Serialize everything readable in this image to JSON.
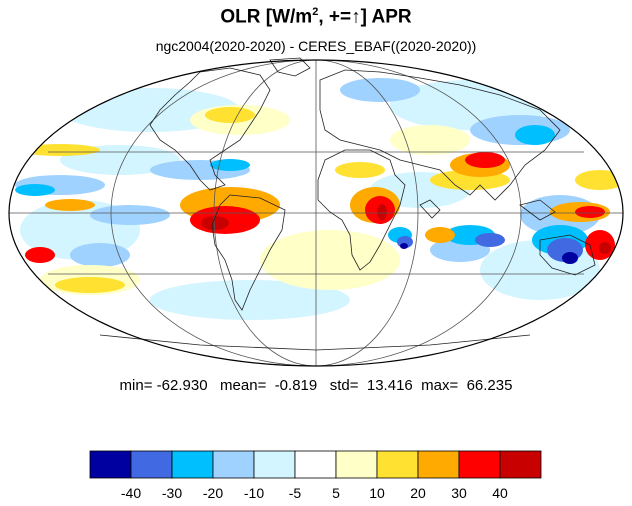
{
  "title": {
    "prefix": "OLR [W/m",
    "sup": "2",
    "suffix": ", +=",
    "arrow": "↑",
    "tail": "] APR"
  },
  "subtitle": "ngc2004(2020-2020) - CERES_EBAF((2020-2020))",
  "stats": {
    "min_label": "min=",
    "min": "-62.930",
    "mean_label": "mean=",
    "mean": "-0.819",
    "std_label": "std=",
    "std": "13.416",
    "max_label": "max=",
    "max": "66.235"
  },
  "colorbar": {
    "colors": [
      "#0000a0",
      "#4169e1",
      "#00bfff",
      "#a0d2ff",
      "#d2f5ff",
      "#ffffff",
      "#ffffc8",
      "#ffe132",
      "#ffaa00",
      "#ff0000",
      "#c80000"
    ],
    "ticks": [
      "-40",
      "-30",
      "-20",
      "-10",
      "-5",
      "5",
      "10",
      "20",
      "30",
      "40"
    ]
  },
  "map": {
    "projection": "Mollweide",
    "field_colors": {
      "strong_neg": "#0000a0",
      "neg": "#4169e1",
      "mid_neg": "#00bfff",
      "light_neg": "#a0d2ff",
      "pale_neg": "#d2f5ff",
      "pale_pos": "#ffffc8",
      "light_pos": "#ffe132",
      "mid_pos": "#ffaa00",
      "pos": "#ff0000",
      "strong_pos": "#c80000"
    }
  }
}
